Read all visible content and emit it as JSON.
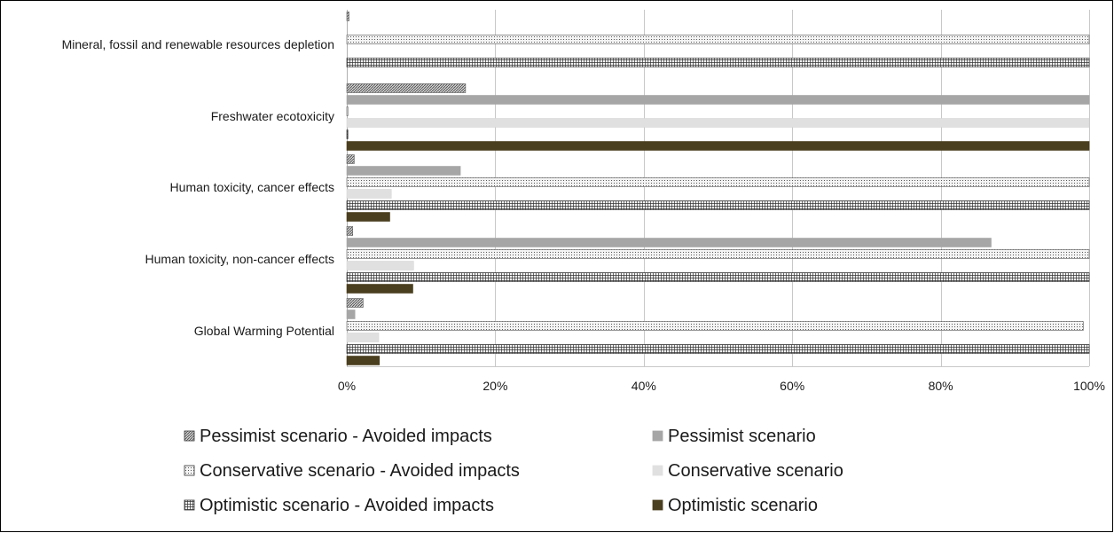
{
  "chart_data": {
    "type": "bar",
    "orientation": "horizontal",
    "stacked": false,
    "title": "",
    "xlabel": "",
    "ylabel": "",
    "xlim": [
      0,
      100
    ],
    "x_ticks": [
      "0%",
      "20%",
      "40%",
      "60%",
      "80%",
      "100%"
    ],
    "grid": true,
    "legend_position": "bottom",
    "categories": [
      "Mineral, fossil and renewable resources depletion",
      "Freshwater ecotoxicity",
      "Human toxicity, cancer effects",
      "Human toxicity, non-cancer effects",
      "Global Warming Potential"
    ],
    "series": [
      {
        "name": "Pessimist scenario - Avoided impacts",
        "values": [
          0.3,
          16,
          1,
          0.8,
          2.2
        ]
      },
      {
        "name": "Pessimist scenario",
        "values": [
          0,
          100,
          15.3,
          86.8,
          1.1
        ]
      },
      {
        "name": "Conservative scenario  - Avoided impacts",
        "values": [
          100,
          0.1,
          100,
          100,
          99.2
        ]
      },
      {
        "name": "Conservative scenario",
        "values": [
          0,
          100,
          6,
          9,
          4.3
        ]
      },
      {
        "name": "Optimistic scenario - Avoided impacts",
        "values": [
          100,
          0.1,
          100,
          100,
          100
        ]
      },
      {
        "name": "Optimistic scenario",
        "values": [
          0,
          100,
          5.8,
          8.9,
          4.4
        ]
      }
    ],
    "series_styles": [
      {
        "fill": "#bdbdbd",
        "pattern": "diagonal-hatch",
        "stroke": "#5a5a5a"
      },
      {
        "fill": "#a6a6a6",
        "pattern": "solid",
        "stroke": "#a6a6a6"
      },
      {
        "fill": "#f0f0f0",
        "pattern": "dots",
        "stroke": "#555555"
      },
      {
        "fill": "#e0e0e0",
        "pattern": "solid",
        "stroke": "#d6d6d6"
      },
      {
        "fill": "#f4f4f4",
        "pattern": "grid",
        "stroke": "#222222"
      },
      {
        "fill": "#4a3f1f",
        "pattern": "solid",
        "stroke": "#4a3f1f"
      }
    ]
  }
}
